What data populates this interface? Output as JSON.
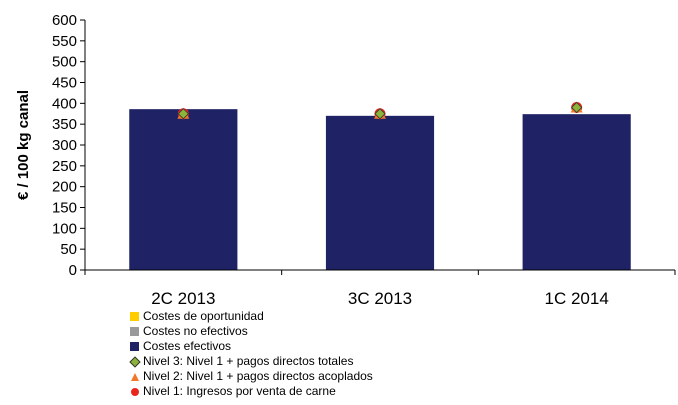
{
  "chart_data": {
    "type": "bar",
    "title": "",
    "xlabel": "",
    "ylabel": "€ / 100 kg canal",
    "ylim": [
      0,
      600
    ],
    "ytick_step": 50,
    "yticks": [
      "0",
      "50",
      "100",
      "150",
      "200",
      "250",
      "300",
      "350",
      "400",
      "450",
      "500",
      "550",
      "600"
    ],
    "categories": [
      "2C 2013",
      "3C 2013",
      "1C 2014"
    ],
    "series": [
      {
        "name": "Costes de oportunidad",
        "kind": "bar",
        "color": "#ffcc00",
        "values": [
          0,
          0,
          0
        ]
      },
      {
        "name": "Costes no efectivos",
        "kind": "bar",
        "color": "#999999",
        "values": [
          0,
          0,
          0
        ]
      },
      {
        "name": "Costes efectivos",
        "kind": "bar",
        "color": "#1f2366",
        "values": [
          386,
          370,
          374
        ]
      },
      {
        "name": "Nivel 3: Nivel 1 + pagos directos totales",
        "kind": "marker",
        "marker": "diamond",
        "color": "#8cb33a",
        "values": [
          375,
          375,
          390
        ]
      },
      {
        "name": "Nivel 2: Nivel 1 + pagos directos acoplados",
        "kind": "marker",
        "marker": "triangle",
        "color": "#f07828",
        "values": [
          375,
          375,
          390
        ]
      },
      {
        "name": "Nivel 1: Ingresos por venta de carne",
        "kind": "marker",
        "marker": "circle",
        "color": "#e8261e",
        "values": [
          375,
          375,
          390
        ]
      }
    ],
    "grid": false,
    "legend_position": "bottom"
  }
}
